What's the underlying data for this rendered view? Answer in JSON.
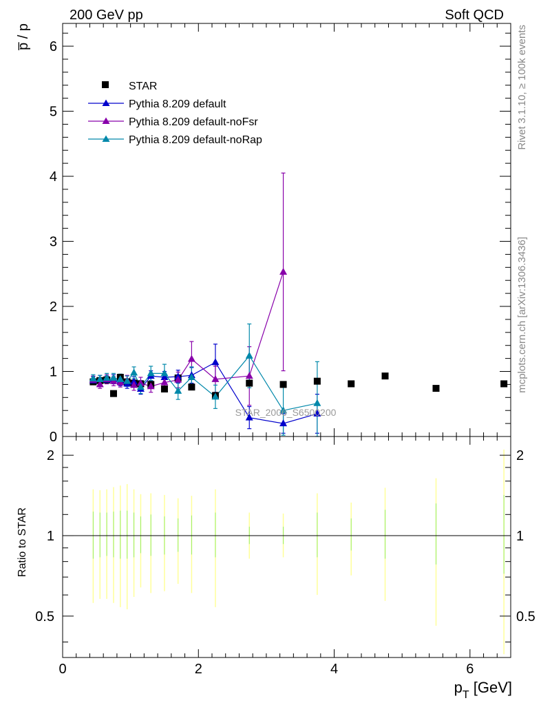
{
  "header": {
    "left": "200 GeV pp",
    "right": "Soft QCD"
  },
  "side_labels": {
    "rivet": "Rivet 3.1.10, ≥ 100k events",
    "mcplots": "mcplots.cern.ch [arXiv:1306.3436]"
  },
  "watermark": "STAR_2006_S6500200",
  "colors": {
    "star": "#000000",
    "default": "#0000cc",
    "noFsr": "#8800aa",
    "noRap": "#0088aa",
    "band_outer": "#ffff99",
    "band_inner": "#99ee66"
  },
  "chart_data": [
    {
      "type": "scatter",
      "ylabel": "p̅ / p",
      "xlim": [
        0,
        6.6
      ],
      "ylim": [
        0,
        6.35
      ],
      "yticks": [
        0,
        1,
        2,
        3,
        4,
        5,
        6
      ],
      "ytick_labels": [
        "0",
        "1",
        "2",
        "3",
        "4",
        "5",
        "6"
      ],
      "legend_position": "top-left",
      "series": [
        {
          "name": "STAR",
          "key": "star",
          "marker": "square",
          "x": [
            0.45,
            0.55,
            0.65,
            0.75,
            0.85,
            0.95,
            1.05,
            1.15,
            1.3,
            1.5,
            1.7,
            1.9,
            2.25,
            2.75,
            3.25,
            3.75,
            4.25,
            4.75,
            5.5,
            6.5
          ],
          "y": [
            0.84,
            0.86,
            0.87,
            0.66,
            0.91,
            0.84,
            0.82,
            0.81,
            0.8,
            0.73,
            0.9,
            0.76,
            0.63,
            0.82,
            0.8,
            0.85,
            0.81,
            0.93,
            0.74,
            0.81
          ]
        },
        {
          "name": "Pythia 8.209 default",
          "key": "default",
          "marker": "triangle",
          "x": [
            0.45,
            0.55,
            0.65,
            0.75,
            0.85,
            0.95,
            1.05,
            1.15,
            1.3,
            1.5,
            1.7,
            1.9,
            2.25,
            2.75,
            3.25,
            3.75
          ],
          "y": [
            0.86,
            0.88,
            0.87,
            0.88,
            0.85,
            0.81,
            0.84,
            0.73,
            0.93,
            0.91,
            0.92,
            0.94,
            1.14,
            0.29,
            0.2,
            0.35
          ],
          "err": [
            0.06,
            0.06,
            0.06,
            0.07,
            0.07,
            0.07,
            0.08,
            0.08,
            0.08,
            0.09,
            0.1,
            0.12,
            0.28,
            0.17,
            0.15,
            0.3
          ]
        },
        {
          "name": "Pythia 8.209 default-noFsr",
          "key": "noFsr",
          "marker": "triangle",
          "x": [
            0.45,
            0.55,
            0.65,
            0.75,
            0.85,
            0.95,
            1.05,
            1.15,
            1.3,
            1.5,
            1.7,
            1.9,
            2.25,
            2.75,
            3.25
          ],
          "y": [
            0.87,
            0.8,
            0.88,
            0.85,
            0.83,
            0.86,
            0.79,
            0.82,
            0.77,
            0.83,
            0.87,
            1.19,
            0.88,
            0.93,
            2.53
          ],
          "err": [
            0.06,
            0.06,
            0.07,
            0.07,
            0.07,
            0.08,
            0.08,
            0.09,
            0.09,
            0.1,
            0.12,
            0.27,
            0.2,
            0.45,
            1.52
          ]
        },
        {
          "name": "Pythia 8.209 default-noRap",
          "key": "noRap",
          "marker": "triangle",
          "x": [
            0.45,
            0.55,
            0.65,
            0.75,
            0.85,
            0.95,
            1.05,
            1.15,
            1.3,
            1.5,
            1.7,
            1.9,
            2.25,
            2.75,
            3.25,
            3.75
          ],
          "y": [
            0.89,
            0.88,
            0.9,
            0.9,
            0.88,
            0.85,
            0.98,
            0.76,
            0.97,
            0.97,
            0.7,
            0.91,
            0.61,
            1.24,
            0.4,
            0.51
          ],
          "err": [
            0.06,
            0.06,
            0.07,
            0.07,
            0.08,
            0.08,
            0.09,
            0.1,
            0.11,
            0.14,
            0.13,
            0.16,
            0.18,
            0.49,
            0.38,
            0.64
          ]
        }
      ]
    },
    {
      "type": "scatter",
      "ylabel": "Ratio to STAR",
      "xlabel": "p_T [GeV]",
      "xlim": [
        0,
        6.6
      ],
      "ylim": [
        0.35,
        2.35
      ],
      "log_y": true,
      "yticks": [
        0.5,
        1,
        2
      ],
      "ytick_labels": [
        "0.5",
        "1",
        "2"
      ],
      "xticks": [
        0,
        2,
        4,
        6
      ],
      "xtick_labels": [
        "0",
        "2",
        "4",
        "6"
      ],
      "reference_line": 1,
      "bands": {
        "x": [
          0.45,
          0.55,
          0.65,
          0.75,
          0.85,
          0.95,
          1.05,
          1.15,
          1.3,
          1.5,
          1.7,
          1.9,
          2.25,
          2.75,
          3.25,
          3.75,
          4.25,
          4.75,
          5.5,
          6.5
        ],
        "outer_lo": [
          0.56,
          0.58,
          0.58,
          0.56,
          0.54,
          0.53,
          0.59,
          0.64,
          0.61,
          0.62,
          0.66,
          0.61,
          0.54,
          0.82,
          0.83,
          0.6,
          0.71,
          0.57,
          0.46,
          0.36
        ],
        "outer_hi": [
          1.49,
          1.48,
          1.49,
          1.52,
          1.54,
          1.56,
          1.49,
          1.43,
          1.44,
          1.42,
          1.38,
          1.41,
          1.49,
          1.22,
          1.21,
          1.44,
          1.33,
          1.51,
          1.64,
          2.1
        ],
        "inner_lo": [
          0.82,
          0.83,
          0.84,
          0.83,
          0.82,
          0.82,
          0.83,
          0.86,
          0.84,
          0.85,
          0.87,
          0.85,
          0.83,
          0.93,
          0.93,
          0.83,
          0.88,
          0.82,
          0.78,
          0.72
        ],
        "inner_hi": [
          1.23,
          1.22,
          1.22,
          1.23,
          1.24,
          1.24,
          1.22,
          1.18,
          1.2,
          1.18,
          1.16,
          1.19,
          1.22,
          1.08,
          1.08,
          1.22,
          1.16,
          1.25,
          1.32,
          1.42
        ]
      }
    }
  ],
  "axis_titles": {
    "y_top": "p̅ / p",
    "y_bottom": "Ratio to STAR",
    "x_main": "p",
    "x_sub": "T",
    "x_unit": " [GeV]"
  }
}
